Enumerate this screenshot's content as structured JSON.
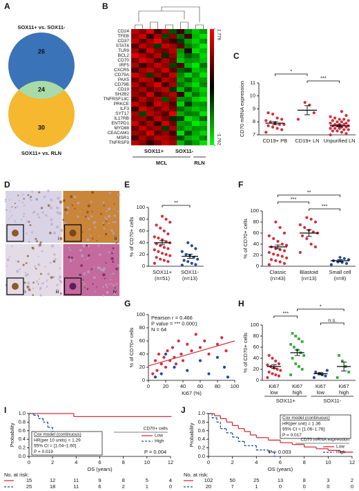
{
  "chart_data": [
    {
      "type": "venn",
      "label": "A",
      "sets": [
        "SOX11+ vs. SOX11-",
        "SOX11+ vs. RLN"
      ],
      "values": [
        26,
        24,
        30
      ],
      "colors": [
        "#3b73b9",
        "#f5b82e"
      ],
      "overlap_color": "#a8dba8"
    },
    {
      "type": "heatmap",
      "label": "B",
      "genes": [
        "CD24",
        "TFEB",
        "CD37",
        "STAT6",
        "TLR9",
        "BCL2",
        "CD70",
        "IRF5",
        "CXCR5",
        "CD79A",
        "PAX5",
        "CD79B",
        "CD19",
        "SH2B2",
        "TNFRSF13C",
        "PRKCE",
        "ILF3",
        "SYT17",
        "IL17RB",
        "ENTPD1",
        "MYD88",
        "CEACAM1",
        "MSR1",
        "TNFRSF9"
      ],
      "values": [
        [
          1.2,
          0.8,
          1.5,
          0.3,
          1.0,
          -0.4,
          0.2,
          -0.8,
          -1.3,
          -1.0
        ],
        [
          0.9,
          1.4,
          0.2,
          1.1,
          -0.3,
          0.8,
          -0.6,
          0.3,
          -1.2,
          -1.5
        ],
        [
          1.3,
          0.5,
          1.0,
          1.6,
          0.7,
          0.2,
          -0.2,
          -1.0,
          -1.4,
          -0.9
        ],
        [
          0.4,
          1.2,
          0.9,
          -0.2,
          1.3,
          1.0,
          0.5,
          -0.7,
          -1.1,
          -1.6
        ],
        [
          1.0,
          0.3,
          1.4,
          0.8,
          0.6,
          1.2,
          -0.9,
          0.1,
          -1.5,
          -1.2
        ],
        [
          1.5,
          1.1,
          0.6,
          1.2,
          -0.1,
          0.9,
          -1.1,
          -0.5,
          -0.8,
          -1.4
        ],
        [
          0.7,
          1.5,
          1.2,
          0.4,
          1.1,
          0.6,
          -1.3,
          -0.9,
          -1.0,
          -1.3
        ],
        [
          1.1,
          0.2,
          0.8,
          1.3,
          0.9,
          -0.3,
          0.4,
          -1.2,
          -1.6,
          -0.7
        ],
        [
          0.3,
          1.0,
          1.3,
          0.7,
          1.4,
          0.5,
          -0.5,
          -0.3,
          -1.3,
          -1.1
        ],
        [
          1.4,
          0.9,
          -0.2,
          1.0,
          0.5,
          1.3,
          -0.8,
          -1.4,
          -0.9,
          -1.5
        ],
        [
          0.6,
          1.3,
          1.1,
          0.2,
          1.2,
          0.8,
          -1.0,
          -0.6,
          -1.2,
          -1.0
        ],
        [
          1.2,
          0.4,
          0.9,
          1.5,
          0.3,
          1.1,
          -0.7,
          -1.1,
          -1.5,
          -0.8
        ],
        [
          0.8,
          1.1,
          0.5,
          0.9,
          1.3,
          -0.2,
          -1.2,
          -0.4,
          -1.1,
          -1.4
        ],
        [
          1.0,
          0.6,
          1.4,
          0.3,
          0.8,
          1.2,
          0.2,
          -1.3,
          -0.7,
          -1.2
        ],
        [
          0.5,
          1.2,
          0.7,
          1.1,
          -0.4,
          0.9,
          -0.9,
          -0.8,
          -1.4,
          -1.6
        ],
        [
          1.3,
          0.8,
          0.3,
          1.4,
          1.0,
          0.4,
          -1.4,
          -0.2,
          -1.0,
          -0.9
        ],
        [
          0.2,
          1.4,
          1.0,
          0.6,
          1.2,
          0.7,
          -0.6,
          -1.0,
          -1.3,
          -1.1
        ],
        [
          1.1,
          -0.3,
          1.2,
          0.9,
          0.4,
          1.5,
          -1.1,
          -0.7,
          -0.8,
          -1.5
        ],
        [
          0.9,
          1.0,
          0.4,
          1.3,
          0.8,
          -0.1,
          -0.3,
          -1.5,
          -1.2,
          -0.6
        ],
        [
          1.4,
          0.5,
          1.1,
          0.2,
          1.4,
          0.6,
          -1.0,
          -0.9,
          -1.6,
          -1.3
        ],
        [
          0.6,
          1.3,
          0.8,
          1.0,
          -0.2,
          1.1,
          -0.8,
          -1.2,
          -0.9,
          -1.0
        ],
        [
          1.0,
          0.7,
          1.5,
          0.5,
          0.9,
          0.3,
          -1.5,
          -0.4,
          -1.1,
          -1.4
        ],
        [
          0.3,
          1.1,
          0.6,
          1.2,
          1.1,
          0.8,
          -0.4,
          -1.1,
          -1.3,
          -0.8
        ],
        [
          1.2,
          0.9,
          0.2,
          0.7,
          1.3,
          1.0,
          -1.2,
          -0.6,
          -1.0,
          -1.5
        ]
      ],
      "colorlim": [
        -1.762,
        1.779
      ],
      "colorticks": [
        -1.762,
        1.779
      ],
      "groups": [
        {
          "label": "SOX11+",
          "columns": 6
        },
        {
          "label": "SOX11-",
          "columns": 2
        }
      ],
      "supergroups": [
        {
          "label": "MCL",
          "columns": 8
        },
        {
          "label": "RLN",
          "columns": 2
        }
      ]
    },
    {
      "type": "dot",
      "label": "C",
      "ylabel": "CD70 mRNA expression",
      "ylim": [
        7,
        11
      ],
      "yticks": [
        7,
        8,
        9,
        10,
        11
      ],
      "categories": [
        "CD19+ PB",
        "CD19+ LN",
        "Unpurified LN"
      ],
      "colors": [
        "#d62d3b",
        "#d62d3b",
        "#d62d3b"
      ],
      "values": [
        [
          7.2,
          7.4,
          7.5,
          7.6,
          7.7,
          7.8,
          7.8,
          7.9,
          8.0,
          8.1,
          8.2,
          8.3,
          8.6,
          8.7
        ],
        [
          8.2,
          8.7,
          9.3,
          9.5
        ],
        [
          7.0,
          7.1,
          7.2,
          7.3,
          7.3,
          7.4,
          7.4,
          7.5,
          7.5,
          7.5,
          7.6,
          7.6,
          7.7,
          7.7,
          7.7,
          7.8,
          7.8,
          7.8,
          7.9,
          7.9,
          8.0,
          8.0,
          8.1,
          8.1,
          8.2,
          8.2,
          8.3,
          8.4,
          8.5,
          8.8
        ]
      ],
      "means": [
        7.9,
        8.9,
        7.7
      ],
      "errors": [
        0.12,
        0.35,
        0.08
      ],
      "brackets": [
        {
          "groups": [
            1,
            2
          ],
          "label": "***"
        },
        {
          "groups": [
            0,
            1
          ],
          "label": "*"
        }
      ]
    },
    {
      "type": "images",
      "label": "D",
      "labels": [
        "i",
        "ii",
        "iii",
        "iv"
      ]
    },
    {
      "type": "dot",
      "label": "E",
      "ylabel": "% of CD70+ cells",
      "ylim": [
        0,
        100
      ],
      "yticks": [
        0,
        20,
        40,
        60,
        80,
        100
      ],
      "categories": [
        "SOX11+",
        "SOX11-"
      ],
      "sublabels": [
        "(n=51)",
        "(n=13)"
      ],
      "colors": [
        "#d62d3b",
        "#1f4e9c"
      ],
      "values": [
        [
          5,
          8,
          10,
          12,
          15,
          18,
          20,
          22,
          25,
          28,
          30,
          32,
          35,
          38,
          40,
          42,
          45,
          48,
          50,
          55,
          60,
          65,
          70,
          75,
          80,
          85
        ],
        [
          2,
          3,
          5,
          8,
          10,
          12,
          15,
          18,
          20,
          25,
          30,
          35,
          40
        ]
      ],
      "means": [
        40,
        17
      ],
      "errors": [
        3.5,
        3.5
      ],
      "brackets": [
        {
          "groups": [
            0,
            1
          ],
          "label": "**"
        }
      ]
    },
    {
      "type": "dot",
      "label": "F",
      "ylabel": "% of CD70+ cells",
      "ylim": [
        0,
        100
      ],
      "yticks": [
        0,
        20,
        40,
        60,
        80,
        100
      ],
      "categories": [
        "Classic",
        "Blastoid",
        "Small cell"
      ],
      "sublabels": [
        "(n=43)",
        "(n=13)",
        "(n=8)"
      ],
      "colors": [
        "#d62d3b",
        "#d62d3b",
        "#1f4e9c"
      ],
      "values": [
        [
          3,
          5,
          8,
          10,
          12,
          15,
          18,
          20,
          22,
          25,
          28,
          30,
          32,
          35,
          38,
          40,
          45,
          50,
          55,
          60,
          70,
          80
        ],
        [
          25,
          35,
          40,
          50,
          55,
          60,
          62,
          65,
          70,
          75,
          80,
          85,
          88
        ],
        [
          3,
          5,
          7,
          8,
          10,
          12,
          14,
          16
        ]
      ],
      "means": [
        35,
        60,
        10
      ],
      "errors": [
        3.5,
        6,
        2
      ],
      "brackets": [
        {
          "groups": [
            1,
            2
          ],
          "label": "***"
        },
        {
          "groups": [
            0,
            1
          ],
          "label": "***"
        },
        {
          "groups": [
            0,
            2
          ],
          "label": "**"
        }
      ]
    },
    {
      "type": "scatter",
      "label": "G",
      "xlabel": "Ki67 (%)",
      "ylabel": "% of CD70+ cells",
      "xlim": [
        0,
        100
      ],
      "ylim": [
        0,
        100
      ],
      "xticks": [
        0,
        20,
        40,
        60,
        80,
        100
      ],
      "yticks": [
        0,
        20,
        40,
        60,
        80,
        100
      ],
      "series": [
        {
          "color": "#d62d3b",
          "x": [
            5,
            8,
            10,
            12,
            15,
            18,
            20,
            22,
            25,
            28,
            30,
            32,
            35,
            38,
            40,
            45,
            50,
            55,
            60,
            65,
            70,
            80,
            85,
            90
          ],
          "values": [
            10,
            30,
            15,
            40,
            25,
            35,
            20,
            45,
            30,
            50,
            35,
            25,
            60,
            40,
            30,
            55,
            45,
            70,
            50,
            60,
            40,
            55,
            65,
            45
          ]
        },
        {
          "color": "#1f4e9c",
          "x": [
            8,
            15,
            20,
            30,
            45,
            60,
            70,
            80,
            88,
            92
          ],
          "values": [
            5,
            10,
            40,
            20,
            15,
            30,
            10,
            35,
            20,
            5
          ]
        }
      ],
      "fit_line": {
        "color": "#d62d3b",
        "x": [
          0,
          100
        ],
        "values": [
          22,
          60
        ]
      },
      "annotations": [
        "Pearson r = 0.466",
        "P value = *** 0.0001",
        "N = 64"
      ]
    },
    {
      "type": "dot",
      "label": "H",
      "ylabel": "% of CD70+ cells",
      "ylim": [
        0,
        100
      ],
      "yticks": [
        0,
        20,
        40,
        60,
        80,
        100
      ],
      "categories": [
        "Ki67",
        "Ki67",
        "Ki67",
        "Ki67"
      ],
      "sublabels": [
        "low",
        "high",
        "low",
        "high"
      ],
      "colors": [
        "#d62d3b",
        "#3aa845",
        "#1f4e9c",
        "#3aa845"
      ],
      "markers": [
        "circle",
        "square",
        "circle",
        "square"
      ],
      "values": [
        [
          5,
          8,
          10,
          12,
          15,
          18,
          20,
          22,
          25,
          28,
          30,
          35,
          40,
          45
        ],
        [
          10,
          20,
          25,
          30,
          40,
          45,
          50,
          55,
          60,
          65,
          70,
          75,
          80,
          85
        ],
        [
          5,
          8,
          10,
          12,
          15,
          18
        ],
        [
          5,
          15,
          25,
          35,
          45
        ]
      ],
      "means": [
        25,
        50,
        12,
        25
      ],
      "errors": [
        3,
        5,
        2,
        8
      ],
      "brackets": [
        {
          "groups": [
            2,
            3
          ],
          "label": "n.s."
        },
        {
          "groups": [
            0,
            1
          ],
          "label": "***"
        },
        {
          "groups": [
            1,
            3
          ],
          "label": "*"
        }
      ],
      "groups": [
        {
          "label": "SOX11+",
          "columns": 2
        },
        {
          "label": "SOX11-",
          "columns": 2
        }
      ]
    },
    {
      "type": "km",
      "label": "I",
      "xlabel": "OS (years)",
      "ylabel": "Probability",
      "xlim": [
        0,
        12
      ],
      "ylim": [
        0,
        1
      ],
      "xticks": [
        0,
        2,
        4,
        6,
        8,
        10,
        12
      ],
      "yticks": [
        {
          "value": 0,
          "label": "0.0"
        },
        0.2,
        0.4,
        0.6,
        0.8,
        {
          "value": 1,
          "label": "1.0"
        }
      ],
      "legend_title": "CD70+ cells",
      "legend_corner": "middle right",
      "series": [
        {
          "name": "Low",
          "color": "#d62d3b",
          "line_style": "solid",
          "x": [
            0,
            3.8,
            12
          ],
          "values": [
            1,
            0.93,
            0.93
          ]
        },
        {
          "name": "High",
          "color": "#1f4e9c",
          "line_style": "dashed",
          "x": [
            0,
            0.4,
            0.8,
            1.2,
            1.6,
            2.0,
            2.5,
            3.0,
            3.6,
            4.2,
            6.0
          ],
          "values": [
            1,
            0.96,
            0.88,
            0.8,
            0.68,
            0.56,
            0.48,
            0.4,
            0.32,
            0.28,
            0.28
          ]
        }
      ],
      "cox_box": [
        "Cox model (continuous)",
        "HR(per 10 units) = 1.29",
        "95% CI = [1.04–1.60]",
        "P = 0.019"
      ],
      "cox_corner": "lower left",
      "pvalue": "P = 0.004",
      "pvalue_position": "lower right",
      "at_risk": {
        "label": "No. at risk:",
        "rows": [
          [
            15,
            12,
            11,
            9,
            8,
            5,
            4
          ],
          [
            25,
            18,
            11,
            6,
            2,
            1,
            0
          ]
        ]
      }
    },
    {
      "type": "km",
      "label": "J",
      "xlabel": "OS (years)",
      "ylabel": "Probability",
      "xlim": [
        0,
        12
      ],
      "ylim": [
        0,
        1
      ],
      "xticks": [
        0,
        2,
        4,
        6,
        8,
        10,
        12
      ],
      "yticks": [
        {
          "value": 0,
          "label": "0.0"
        },
        0.2,
        0.4,
        0.6,
        0.8,
        {
          "value": 1,
          "label": "1.0"
        }
      ],
      "legend_title": "CD70 mRNA expression",
      "legend_corner": "lower right",
      "series": [
        {
          "name": "Low",
          "color": "#d62d3b",
          "line_style": "solid",
          "x": [
            0,
            0.5,
            1,
            1.5,
            2,
            2.5,
            3,
            3.5,
            4,
            5,
            6,
            7,
            8,
            9,
            10,
            11,
            12
          ],
          "values": [
            1,
            0.95,
            0.88,
            0.8,
            0.72,
            0.65,
            0.58,
            0.5,
            0.44,
            0.38,
            0.32,
            0.28,
            0.22,
            0.18,
            0.14,
            0.1,
            0.1
          ]
        },
        {
          "name": "High",
          "color": "#1f4e9c",
          "line_style": "dashed",
          "x": [
            0,
            0.3,
            0.7,
            1,
            1.5,
            2,
            2.5,
            3,
            4,
            5,
            5.5
          ],
          "values": [
            1,
            0.9,
            0.8,
            0.65,
            0.55,
            0.45,
            0.35,
            0.25,
            0.15,
            0.1,
            0
          ]
        }
      ],
      "cox_box": [
        "Cox model (continuous)",
        "HR(per unit) = 1.36",
        "95% CI = [1.06–1.76]",
        "P = 0.017"
      ],
      "cox_corner": "upper right",
      "pvalue": "P = 0.003",
      "pvalue_position": "lower center",
      "at_risk": {
        "label": "No. at risk:",
        "rows": [
          [
            102,
            50,
            25,
            13,
            8,
            3,
            2
          ],
          [
            20,
            7,
            1,
            0,
            0,
            0,
            0
          ]
        ]
      }
    }
  ]
}
